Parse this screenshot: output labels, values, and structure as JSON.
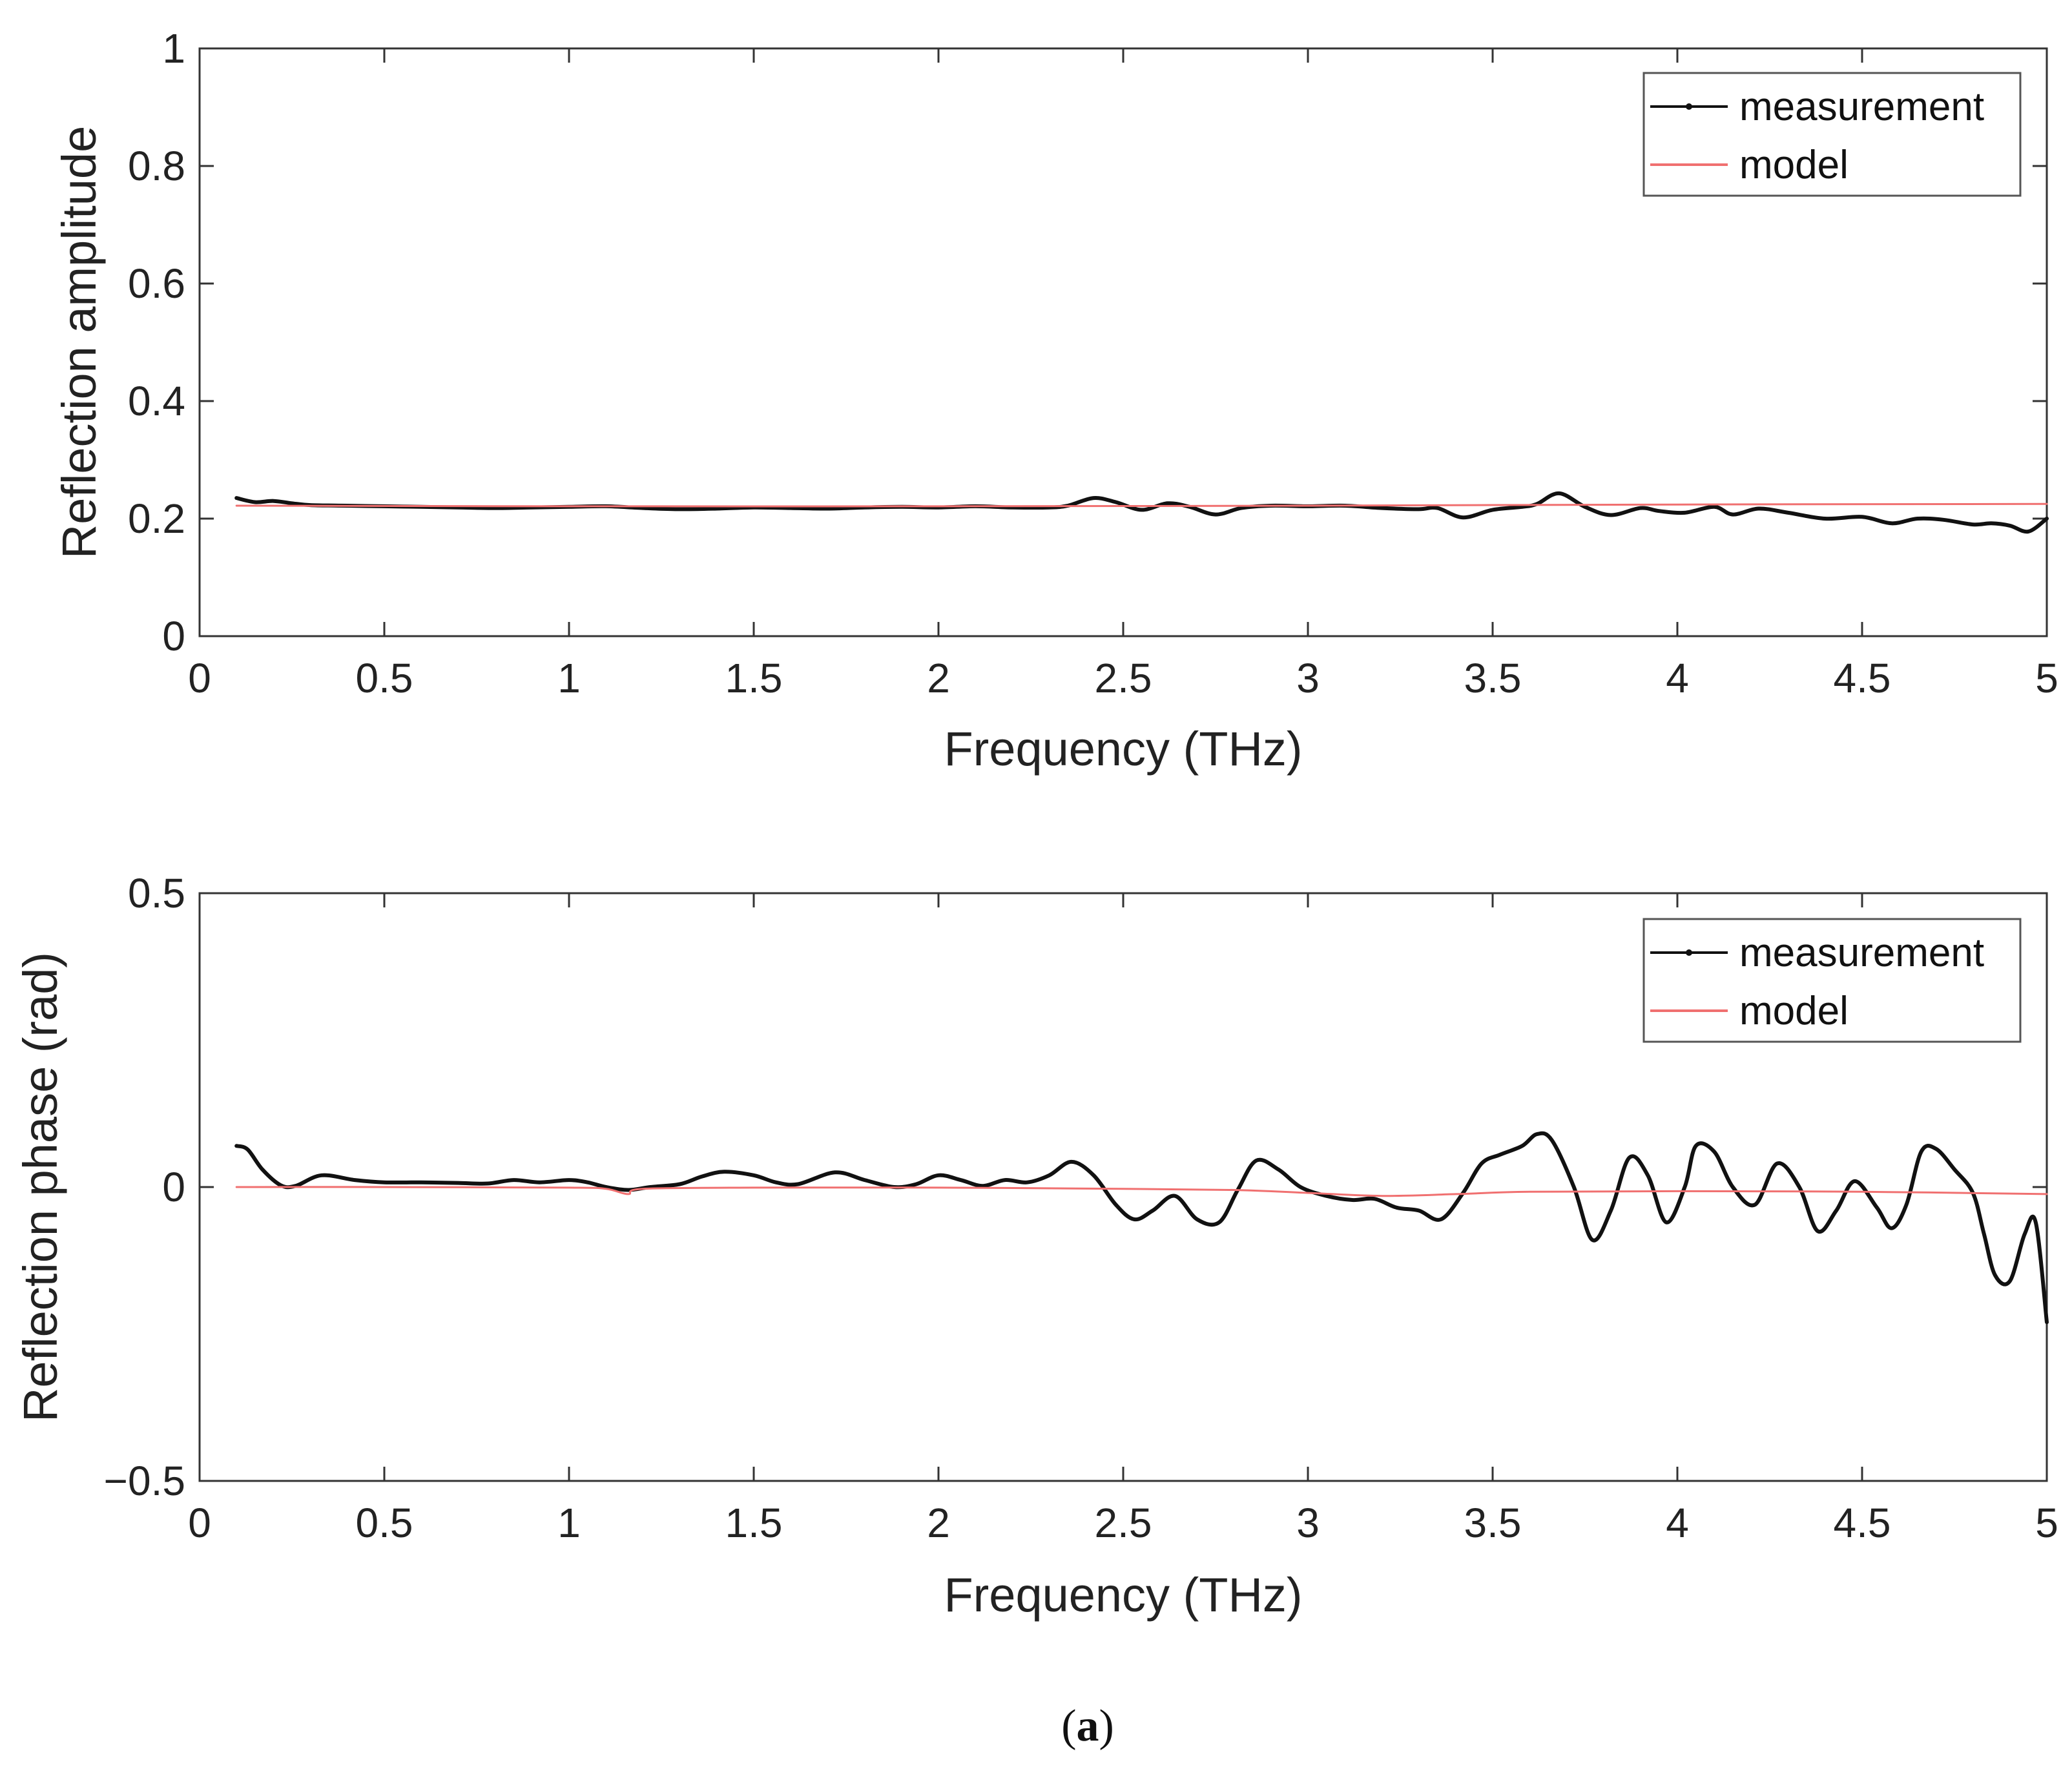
{
  "caption": {
    "open": "(",
    "letter": "a",
    "close": ")"
  },
  "colors": {
    "measurement": "#111111",
    "model": "#f07070",
    "axes": "#333333"
  },
  "chart_data": [
    {
      "type": "line",
      "xlabel": "Frequency (THz)",
      "ylabel": "Reflection amplitude",
      "xlim": [
        0,
        5
      ],
      "ylim": [
        0,
        1
      ],
      "xticks": [
        0,
        0.5,
        1,
        1.5,
        2,
        2.5,
        3,
        3.5,
        4,
        4.5,
        5
      ],
      "xtick_labels": [
        "0",
        "0.5",
        "1",
        "1.5",
        "2",
        "2.5",
        "3",
        "3.5",
        "4",
        "4.5",
        "5"
      ],
      "yticks": [
        0,
        0.2,
        0.4,
        0.6,
        0.8,
        1
      ],
      "ytick_labels": [
        "0",
        "0.2",
        "0.4",
        "0.6",
        "0.8",
        "1"
      ],
      "legend": {
        "position": "top-right",
        "entries": [
          "measurement",
          "model"
        ]
      },
      "series": [
        {
          "name": "measurement",
          "x": [
            0.1,
            0.15,
            0.2,
            0.25,
            0.3,
            0.4,
            0.5,
            0.6,
            0.7,
            0.8,
            0.9,
            1.0,
            1.1,
            1.2,
            1.3,
            1.4,
            1.5,
            1.6,
            1.7,
            1.8,
            1.9,
            2.0,
            2.1,
            2.2,
            2.3,
            2.35,
            2.42,
            2.48,
            2.55,
            2.62,
            2.68,
            2.75,
            2.82,
            2.9,
            3.0,
            3.1,
            3.2,
            3.3,
            3.35,
            3.42,
            3.5,
            3.58,
            3.62,
            3.68,
            3.75,
            3.82,
            3.9,
            3.95,
            4.02,
            4.1,
            4.15,
            4.22,
            4.3,
            4.4,
            4.5,
            4.58,
            4.65,
            4.72,
            4.8,
            4.85,
            4.9,
            4.95,
            5.0
          ],
          "y": [
            0.235,
            0.228,
            0.23,
            0.226,
            0.223,
            0.222,
            0.221,
            0.22,
            0.219,
            0.218,
            0.219,
            0.22,
            0.221,
            0.218,
            0.216,
            0.217,
            0.219,
            0.218,
            0.217,
            0.219,
            0.22,
            0.219,
            0.221,
            0.219,
            0.219,
            0.222,
            0.235,
            0.228,
            0.215,
            0.226,
            0.22,
            0.207,
            0.218,
            0.222,
            0.221,
            0.222,
            0.218,
            0.216,
            0.218,
            0.202,
            0.215,
            0.22,
            0.225,
            0.243,
            0.22,
            0.206,
            0.218,
            0.213,
            0.21,
            0.22,
            0.207,
            0.217,
            0.21,
            0.2,
            0.203,
            0.192,
            0.2,
            0.198,
            0.19,
            0.192,
            0.188,
            0.178,
            0.2
          ]
        },
        {
          "name": "model",
          "x": [
            0.1,
            1.0,
            2.0,
            3.0,
            4.0,
            5.0
          ],
          "y": [
            0.222,
            0.221,
            0.221,
            0.222,
            0.224,
            0.225
          ]
        }
      ]
    },
    {
      "type": "line",
      "xlabel": "Frequency (THz)",
      "ylabel": "Reflection phase (rad)",
      "xlim": [
        0,
        5
      ],
      "ylim": [
        -0.5,
        0.5
      ],
      "xticks": [
        0,
        0.5,
        1,
        1.5,
        2,
        2.5,
        3,
        3.5,
        4,
        4.5,
        5
      ],
      "xtick_labels": [
        "0",
        "0.5",
        "1",
        "1.5",
        "2",
        "2.5",
        "3",
        "3.5",
        "4",
        "4.5",
        "5"
      ],
      "yticks": [
        -0.5,
        0,
        0.5
      ],
      "ytick_labels": [
        "−0.5",
        "0",
        "0.5"
      ],
      "legend": {
        "position": "top-right",
        "entries": [
          "measurement",
          "model"
        ]
      },
      "series": [
        {
          "name": "measurement",
          "x": [
            0.1,
            0.13,
            0.17,
            0.22,
            0.26,
            0.33,
            0.42,
            0.5,
            0.6,
            0.7,
            0.78,
            0.85,
            0.92,
            1.0,
            1.05,
            1.1,
            1.16,
            1.22,
            1.3,
            1.36,
            1.42,
            1.5,
            1.56,
            1.62,
            1.72,
            1.8,
            1.88,
            1.94,
            2.0,
            2.06,
            2.12,
            2.18,
            2.24,
            2.3,
            2.36,
            2.42,
            2.48,
            2.53,
            2.58,
            2.64,
            2.7,
            2.76,
            2.81,
            2.86,
            2.92,
            2.98,
            3.05,
            3.12,
            3.18,
            3.24,
            3.3,
            3.36,
            3.42,
            3.47,
            3.52,
            3.58,
            3.62,
            3.66,
            3.72,
            3.77,
            3.82,
            3.87,
            3.92,
            3.97,
            4.02,
            4.05,
            4.1,
            4.15,
            4.21,
            4.27,
            4.33,
            4.38,
            4.43,
            4.48,
            4.54,
            4.58,
            4.62,
            4.66,
            4.7,
            4.75,
            4.8,
            4.83,
            4.86,
            4.9,
            4.94,
            4.97,
            5.0
          ],
          "y": [
            0.07,
            0.064,
            0.03,
            0.003,
            0.002,
            0.02,
            0.012,
            0.008,
            0.008,
            0.007,
            0.006,
            0.012,
            0.008,
            0.012,
            0.008,
            0.0,
            -0.005,
            0.0,
            0.005,
            0.018,
            0.026,
            0.02,
            0.008,
            0.005,
            0.025,
            0.012,
            0.0,
            0.005,
            0.02,
            0.012,
            0.002,
            0.012,
            0.008,
            0.02,
            0.043,
            0.02,
            -0.03,
            -0.055,
            -0.04,
            -0.015,
            -0.055,
            -0.06,
            -0.005,
            0.045,
            0.03,
            0.0,
            -0.015,
            -0.022,
            -0.02,
            -0.035,
            -0.04,
            -0.055,
            -0.01,
            0.04,
            0.055,
            0.07,
            0.09,
            0.08,
            0.0,
            -0.09,
            -0.04,
            0.05,
            0.02,
            -0.06,
            0.0,
            0.07,
            0.06,
            0.0,
            -0.03,
            0.04,
            0.0,
            -0.075,
            -0.04,
            0.01,
            -0.035,
            -0.07,
            -0.03,
            0.06,
            0.065,
            0.03,
            -0.01,
            -0.08,
            -0.15,
            -0.16,
            -0.08,
            -0.06,
            -0.23
          ]
        },
        {
          "name": "model",
          "x": [
            0.1,
            0.5,
            1.0,
            1.1,
            1.16,
            1.2,
            1.5,
            2.0,
            2.5,
            2.8,
            3.0,
            3.2,
            3.4,
            3.6,
            4.0,
            4.5,
            5.0
          ],
          "y": [
            0.0,
            0.0,
            -0.001,
            -0.003,
            -0.012,
            -0.003,
            -0.001,
            -0.001,
            -0.003,
            -0.005,
            -0.01,
            -0.015,
            -0.012,
            -0.008,
            -0.007,
            -0.008,
            -0.012
          ]
        }
      ]
    }
  ]
}
